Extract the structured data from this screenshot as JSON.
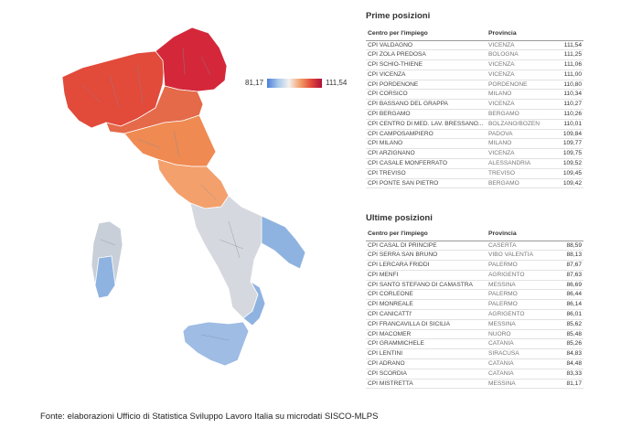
{
  "chart_data": [
    {
      "type": "choropleth map",
      "title": "",
      "legend": {
        "min": "81,17",
        "max": "111,54",
        "colors": [
          "#4a7ed8",
          "#f4f0ee",
          "#b0103a"
        ]
      },
      "region_colors": {
        "north_east": "#d4283a",
        "north_west": "#e24a3a",
        "emilia_romagna": "#e46a4a",
        "tuscany_marche": "#ef8a52",
        "lazio_abruzzo": "#f3a06c",
        "center_south": "#d5d8de",
        "south_blue": "#8fb3e0",
        "sardinia": "#c9cfd8",
        "sicily": "#9ebce4",
        "region_border": "#7f8aa0"
      }
    },
    {
      "type": "table",
      "title": "Prime posizioni",
      "columns": [
        "Centro per l'impiego",
        "Provincia",
        ""
      ],
      "rows": [
        [
          "CPI VALDAGNO",
          "VICENZA",
          "111,54"
        ],
        [
          "CPI ZOLA PREDOSA",
          "BOLOGNA",
          "111,25"
        ],
        [
          "CPI SCHIO-THIENE",
          "VICENZA",
          "111,06"
        ],
        [
          "CPI VICENZA",
          "VICENZA",
          "111,00"
        ],
        [
          "CPI PORDENONE",
          "PORDENONE",
          "110,80"
        ],
        [
          "CPI CORSICO",
          "MILANO",
          "110,34"
        ],
        [
          "CPI BASSANO DEL GRAPPA",
          "VICENZA",
          "110,27"
        ],
        [
          "CPI BERGAMO",
          "BERGAMO",
          "110,26"
        ],
        [
          "CPI CENTRO DI MED. LAV. BRESSANO...",
          "BOLZANO/BOZEN",
          "110,01"
        ],
        [
          "CPI CAMPOSAMPIERO",
          "PADOVA",
          "109,84"
        ],
        [
          "CPI MILANO",
          "MILANO",
          "109,77"
        ],
        [
          "CPI ARZIGNANO",
          "VICENZA",
          "109,75"
        ],
        [
          "CPI CASALE MONFERRATO",
          "ALESSANDRIA",
          "109,52"
        ],
        [
          "CPI TREVISO",
          "TREVISO",
          "109,45"
        ],
        [
          "CPI PONTE SAN PIETRO",
          "BERGAMO",
          "109,42"
        ]
      ]
    },
    {
      "type": "table",
      "title": "Ultime posizioni",
      "columns": [
        "Centro per l'impiego",
        "Provincia",
        ""
      ],
      "rows": [
        [
          "CPI CASAL DI PRINCIPE",
          "CASERTA",
          "88,59"
        ],
        [
          "CPI SERRA SAN BRUNO",
          "VIBO VALENTIA",
          "88,13"
        ],
        [
          "CPI LERCARA FRIDDI",
          "PALERMO",
          "87,67"
        ],
        [
          "CPI MENFI",
          "AGRIGENTO",
          "87,63"
        ],
        [
          "CPI SANTO STEFANO DI CAMASTRA",
          "MESSINA",
          "86,69"
        ],
        [
          "CPI CORLEONE",
          "PALERMO",
          "86,44"
        ],
        [
          "CPI MONREALE",
          "PALERMO",
          "86,14"
        ],
        [
          "CPI CANICATTI'",
          "AGRIGENTO",
          "86,01"
        ],
        [
          "CPI FRANCAVILLA DI SICILIA",
          "MESSINA",
          "85,62"
        ],
        [
          "CPI MACOMER",
          "NUORO",
          "85,48"
        ],
        [
          "CPI GRAMMICHELE",
          "CATANIA",
          "85,26"
        ],
        [
          "CPI LENTINI",
          "SIRACUSA",
          "84,83"
        ],
        [
          "CPI ADRANO",
          "CATANIA",
          "84,48"
        ],
        [
          "CPI SCORDIA",
          "CATANIA",
          "83,33"
        ],
        [
          "CPI MISTRETTA",
          "MESSINA",
          "81,17"
        ]
      ]
    }
  ],
  "source_note": "Fonte: elaborazioni Ufficio di Statistica Sviluppo Lavoro Italia su microdati SISCO-MLPS"
}
